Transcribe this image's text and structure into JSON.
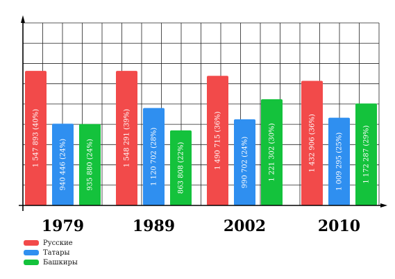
{
  "chart_data": {
    "type": "bar",
    "categories": [
      "1979",
      "1989",
      "2002",
      "2010"
    ],
    "series": [
      {
        "name": "Русские",
        "color": "#f24a4a",
        "values": [
          1547893,
          1548291,
          1490715,
          1432906
        ],
        "labels": [
          "1 547 893 (40%)",
          "1 548 291 (39%)",
          "1 490 715 (36%)",
          "1 432 906 (36%)"
        ]
      },
      {
        "name": "Татары",
        "color": "#2f8ff0",
        "values": [
          940446,
          1120702,
          990702,
          1009295
        ],
        "labels": [
          "940 446 (24%)",
          "1 120 702 (28%)",
          "990 702 (24%)",
          "1 009 295 (25%)"
        ]
      },
      {
        "name": "Башкиры",
        "color": "#14c23c",
        "values": [
          935880,
          863808,
          1221302,
          1172287
        ],
        "labels": [
          "935 880 (24%)",
          "863 808 (22%)",
          "1 221 302 (30%)",
          "1 172 287 (29%)"
        ]
      }
    ],
    "ylim": [
      0,
      2100000
    ],
    "grid": true,
    "legend_position": "bottom-left"
  }
}
